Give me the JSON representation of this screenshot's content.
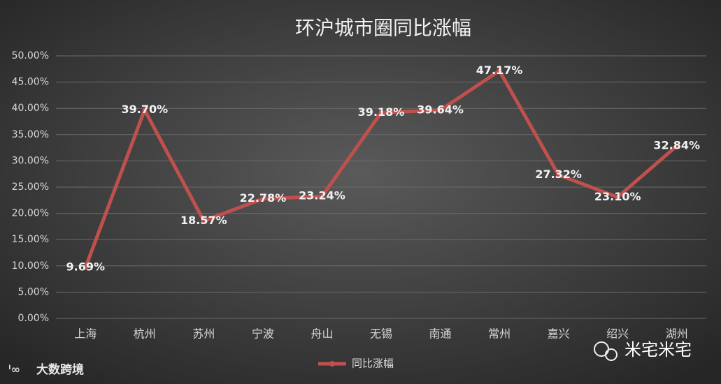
{
  "chart_data": {
    "type": "line",
    "title": "环沪城市圈同比涨幅",
    "categories": [
      "上海",
      "杭州",
      "苏州",
      "宁波",
      "舟山",
      "无锡",
      "南通",
      "常州",
      "嘉兴",
      "绍兴",
      "湖州"
    ],
    "series": [
      {
        "name": "同比涨幅",
        "color": "#c0504d",
        "values": [
          9.69,
          39.7,
          18.57,
          22.78,
          23.24,
          39.18,
          39.64,
          47.17,
          27.32,
          23.1,
          32.84
        ],
        "value_labels": [
          "9.69%",
          "39.70%",
          "18.57%",
          "22.78%",
          "23.24%",
          "39.18%",
          "39.64%",
          "47.17%",
          "27.32%",
          "23.10%",
          "32.84%"
        ]
      }
    ],
    "ylim": [
      0,
      50
    ],
    "yticks": [
      {
        "value": 0,
        "label": "0.00%"
      },
      {
        "value": 5,
        "label": "5.00%"
      },
      {
        "value": 10,
        "label": "10.00%"
      },
      {
        "value": 15,
        "label": "15.00%"
      },
      {
        "value": 20,
        "label": "20.00%"
      },
      {
        "value": 25,
        "label": "25.00%"
      },
      {
        "value": 30,
        "label": "30.00%"
      },
      {
        "value": 35,
        "label": "35.00%"
      },
      {
        "value": 40,
        "label": "40.00%"
      },
      {
        "value": 45,
        "label": "45.00%"
      },
      {
        "value": 50,
        "label": "50.00%"
      }
    ],
    "grid": true,
    "legend": "bottom"
  },
  "watermarks": [
    "大数跨境",
    "米宅米宅"
  ]
}
